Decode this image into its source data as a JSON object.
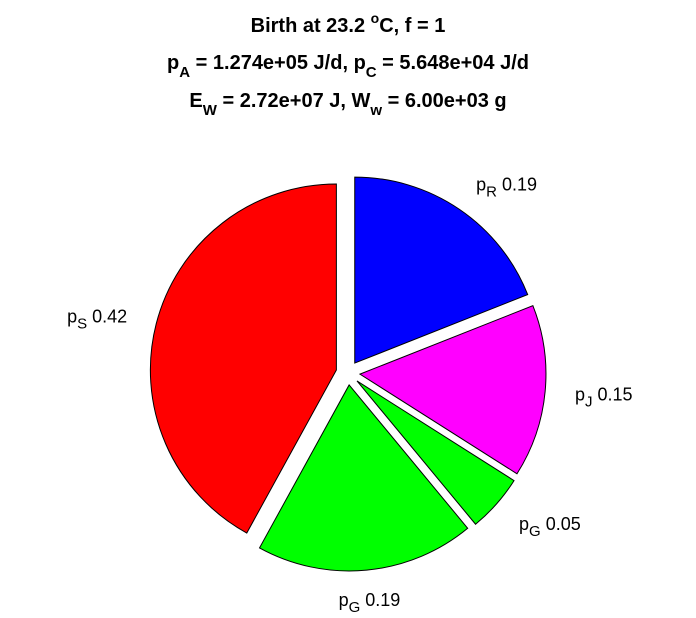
{
  "title": {
    "line1": {
      "text": "Birth at 23.2 ",
      "sup": "o",
      "tail": "C, f = 1"
    },
    "line2": [
      {
        "base": "p",
        "sub": "A",
        "rest": " = 1.274e+05 J/d, "
      },
      {
        "base": "p",
        "sub": "C",
        "rest": " = 5.648e+04 J/d"
      }
    ],
    "line3": [
      {
        "base": "E",
        "sub": "W",
        "rest": " = 2.72e+07 J, "
      },
      {
        "base": "W",
        "sub": "w",
        "rest": " = 6.00e+03 g"
      }
    ]
  },
  "chart_data": {
    "type": "pie",
    "direction": "clockwise",
    "start": "12 o'clock",
    "slices": [
      {
        "label_base": "p",
        "label_sub": "R",
        "value_text": "0.19",
        "value": 0.19,
        "color": "#0000FF",
        "exploded": true
      },
      {
        "label_base": "p",
        "label_sub": "J",
        "value_text": "0.15",
        "value": 0.15,
        "color": "#FF00FF",
        "exploded": true
      },
      {
        "label_base": "p",
        "label_sub": "G",
        "value_text": "0.05",
        "value": 0.05,
        "color": "#00FF00",
        "exploded": true
      },
      {
        "label_base": "p",
        "label_sub": "G",
        "value_text": "0.19",
        "value": 0.19,
        "color": "#00FF00",
        "exploded": true
      },
      {
        "label_base": "p",
        "label_sub": "S",
        "value_text": "0.42",
        "value": 0.42,
        "color": "#FF0000",
        "exploded": true
      }
    ]
  }
}
